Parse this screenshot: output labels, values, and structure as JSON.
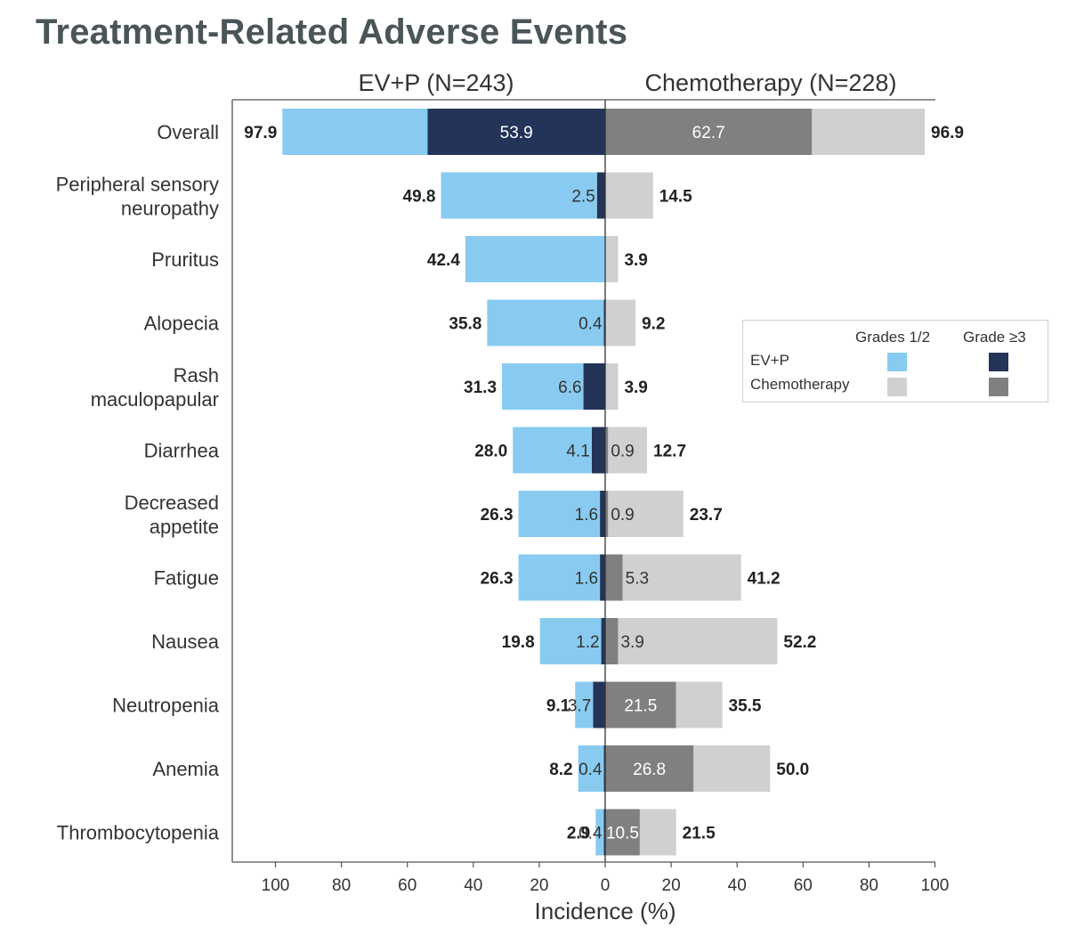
{
  "title": "Treatment-Related Adverse Events",
  "colors": {
    "evp_low": "#89cbf0",
    "evp_high": "#233458",
    "chemo_low": "#d0d0d0",
    "chemo_high": "#808080"
  },
  "legend": {
    "col_low": "Grades 1/2",
    "col_high": "Grade ≥3",
    "row_evp": "EV+P",
    "row_chemo": "Chemotherapy"
  },
  "chart_data": {
    "type": "bar",
    "orientation": "horizontal-diverging",
    "title": "Treatment-Related Adverse Events",
    "left_arm": "EV+P (N=243)",
    "right_arm": "Chemotherapy (N=228)",
    "xlabel": "Incidence (%)",
    "xlim": [
      -100,
      100
    ],
    "xticks": [
      "100",
      "80",
      "60",
      "40",
      "20",
      "0",
      "20",
      "40",
      "60",
      "80",
      "100"
    ],
    "categories": [
      "Overall",
      "Peripheral sensory neuropathy",
      "Pruritus",
      "Alopecia",
      "Rash maculopapular",
      "Diarrhea",
      "Decreased appetite",
      "Fatigue",
      "Nausea",
      "Neutropenia",
      "Anemia",
      "Thrombocytopenia"
    ],
    "series": [
      {
        "name": "EV+P Grades 1/2",
        "values": [
          44.0,
          47.3,
          42.4,
          35.4,
          24.7,
          23.9,
          24.7,
          24.7,
          18.6,
          5.4,
          7.8,
          2.5
        ]
      },
      {
        "name": "EV+P Grade ≥3",
        "values": [
          53.9,
          2.5,
          0,
          0.4,
          6.6,
          4.1,
          1.6,
          1.6,
          1.2,
          3.7,
          0.4,
          0.4
        ]
      },
      {
        "name": "Chemotherapy Grade ≥3",
        "values": [
          62.7,
          0,
          0,
          0,
          0,
          0.9,
          0.9,
          5.3,
          3.9,
          21.5,
          26.8,
          10.5
        ]
      },
      {
        "name": "Chemotherapy Grades 1/2",
        "values": [
          34.2,
          14.5,
          3.9,
          9.2,
          3.9,
          11.8,
          22.8,
          35.9,
          48.3,
          14.0,
          23.2,
          11.0
        ]
      }
    ],
    "labels": {
      "evp_total": [
        "97.9",
        "49.8",
        "42.4",
        "35.8",
        "31.3",
        "28.0",
        "26.3",
        "26.3",
        "19.8",
        "9.1",
        "8.2",
        "2.9"
      ],
      "evp_g3": [
        "53.9",
        "2.5",
        "",
        "0.4",
        "6.6",
        "4.1",
        "1.6",
        "1.6",
        "1.2",
        "3.7",
        "0.4",
        "0.4"
      ],
      "chemo_g3": [
        "62.7",
        "",
        "",
        "",
        "",
        "0.9",
        "0.9",
        "5.3",
        "3.9",
        "21.5",
        "26.8",
        "10.5"
      ],
      "chemo_total": [
        "96.9",
        "14.5",
        "3.9",
        "9.2",
        "3.9",
        "12.7",
        "23.7",
        "41.2",
        "52.2",
        "35.5",
        "50.0",
        "21.5"
      ]
    },
    "legend": {
      "position": "right",
      "columns": [
        "Grades 1/2",
        "Grade ≥3"
      ],
      "rows": [
        "EV+P",
        "Chemotherapy"
      ]
    }
  }
}
